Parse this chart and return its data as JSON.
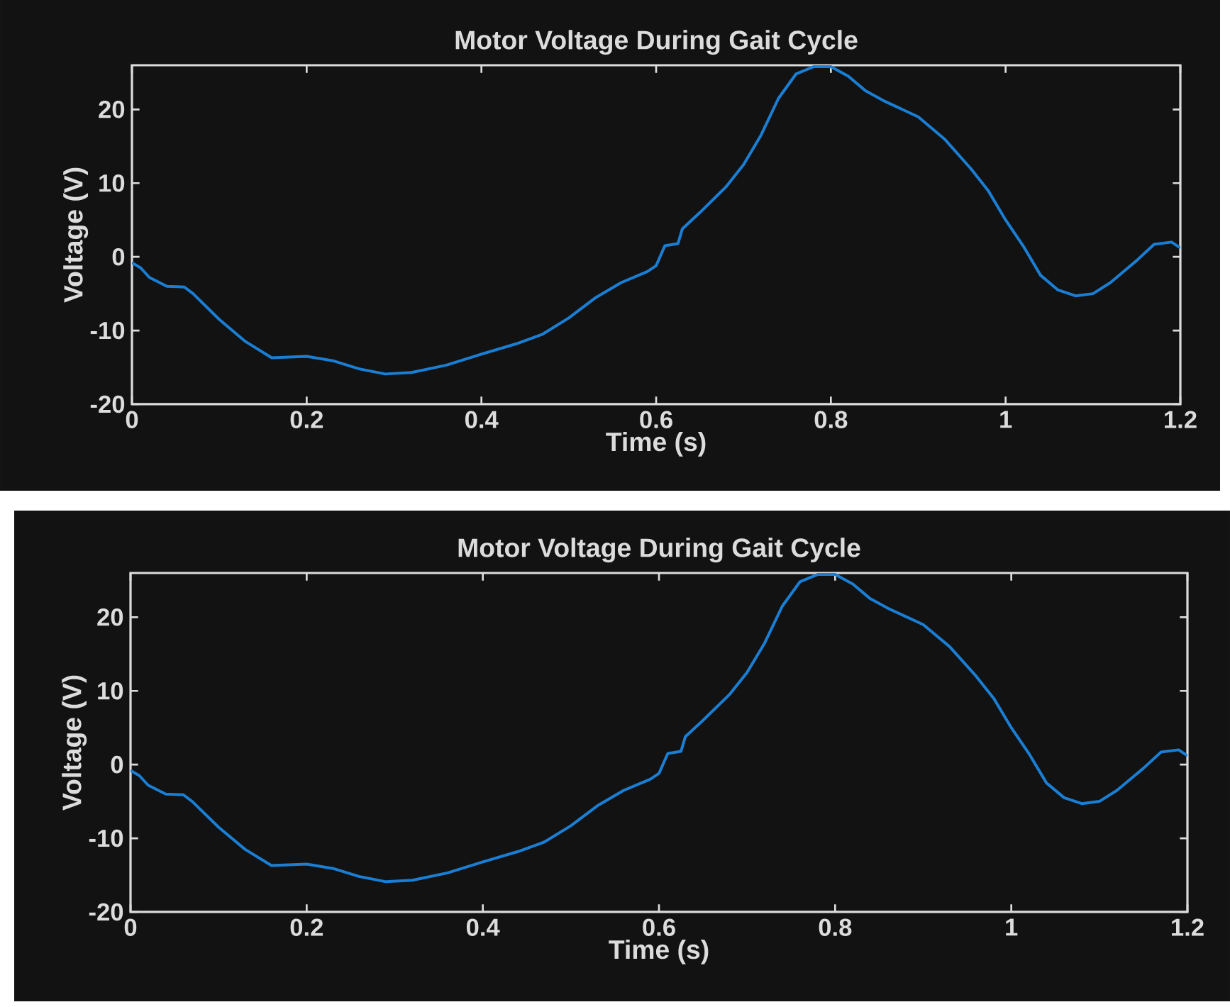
{
  "chart_data": [
    {
      "type": "line",
      "title": "Motor Voltage During Gait Cycle",
      "xlabel": "Time (s)",
      "ylabel": "Voltage (V)",
      "x": [
        0,
        0.01,
        0.02,
        0.04,
        0.06,
        0.07,
        0.1,
        0.13,
        0.16,
        0.2,
        0.23,
        0.26,
        0.29,
        0.32,
        0.36,
        0.4,
        0.44,
        0.47,
        0.5,
        0.53,
        0.56,
        0.59,
        0.6,
        0.61,
        0.625,
        0.63,
        0.65,
        0.68,
        0.7,
        0.72,
        0.74,
        0.76,
        0.78,
        0.8,
        0.82,
        0.84,
        0.86,
        0.9,
        0.93,
        0.96,
        0.98,
        1.0,
        1.02,
        1.04,
        1.06,
        1.08,
        1.1,
        1.12,
        1.14,
        1.15,
        1.17,
        1.19,
        1.2
      ],
      "series": [
        {
          "color": "#1a7fd4",
          "values": [
            -0.8,
            -1.5,
            -2.8,
            -4,
            -4.1,
            -5,
            -8.5,
            -11.5,
            -13.7,
            -13.5,
            -14.1,
            -15.2,
            -15.9,
            -15.7,
            -14.7,
            -13.2,
            -11.8,
            -10.5,
            -8.3,
            -5.6,
            -3.5,
            -2,
            -1.2,
            1.5,
            1.8,
            3.8,
            6,
            9.5,
            12.5,
            16.5,
            21.5,
            24.8,
            25.8,
            25.8,
            24.5,
            22.5,
            21.2,
            19,
            16,
            12,
            9,
            5,
            1.5,
            -2.5,
            -4.5,
            -5.3,
            -5,
            -3.5,
            -1.5,
            -0.5,
            1.7,
            2,
            1.2
          ]
        }
      ],
      "xlim": [
        0,
        1.2
      ],
      "ylim": [
        -20,
        26
      ],
      "xticks": [
        0,
        0.2,
        0.4,
        0.6,
        0.8,
        1,
        1.2
      ],
      "yticks": [
        -20,
        -10,
        0,
        10,
        20
      ]
    },
    {
      "type": "line",
      "title": "Motor Voltage During Gait Cycle",
      "xlabel": "Time (s)",
      "ylabel": "Voltage (V)",
      "x": [
        0,
        0.01,
        0.02,
        0.04,
        0.06,
        0.07,
        0.1,
        0.13,
        0.16,
        0.2,
        0.23,
        0.26,
        0.29,
        0.32,
        0.36,
        0.4,
        0.44,
        0.47,
        0.5,
        0.53,
        0.56,
        0.59,
        0.6,
        0.61,
        0.625,
        0.63,
        0.65,
        0.68,
        0.7,
        0.72,
        0.74,
        0.76,
        0.78,
        0.8,
        0.82,
        0.84,
        0.86,
        0.9,
        0.93,
        0.96,
        0.98,
        1.0,
        1.02,
        1.04,
        1.06,
        1.08,
        1.1,
        1.12,
        1.14,
        1.15,
        1.17,
        1.19,
        1.2
      ],
      "series": [
        {
          "color": "#1a7fd4",
          "values": [
            -0.8,
            -1.5,
            -2.8,
            -4,
            -4.1,
            -5,
            -8.5,
            -11.5,
            -13.7,
            -13.5,
            -14.1,
            -15.2,
            -15.9,
            -15.7,
            -14.7,
            -13.2,
            -11.8,
            -10.5,
            -8.3,
            -5.6,
            -3.5,
            -2,
            -1.2,
            1.5,
            1.8,
            3.8,
            6,
            9.5,
            12.5,
            16.5,
            21.5,
            24.8,
            25.8,
            25.8,
            24.5,
            22.5,
            21.2,
            19,
            16,
            12,
            9,
            5,
            1.5,
            -2.5,
            -4.5,
            -5.3,
            -5,
            -3.5,
            -1.5,
            -0.5,
            1.7,
            2,
            1.2
          ]
        }
      ],
      "xlim": [
        0,
        1.2
      ],
      "ylim": [
        -20,
        26
      ],
      "xticks": [
        0,
        0.2,
        0.4,
        0.6,
        0.8,
        1,
        1.2
      ],
      "yticks": [
        -20,
        -10,
        0,
        10,
        20
      ]
    }
  ]
}
